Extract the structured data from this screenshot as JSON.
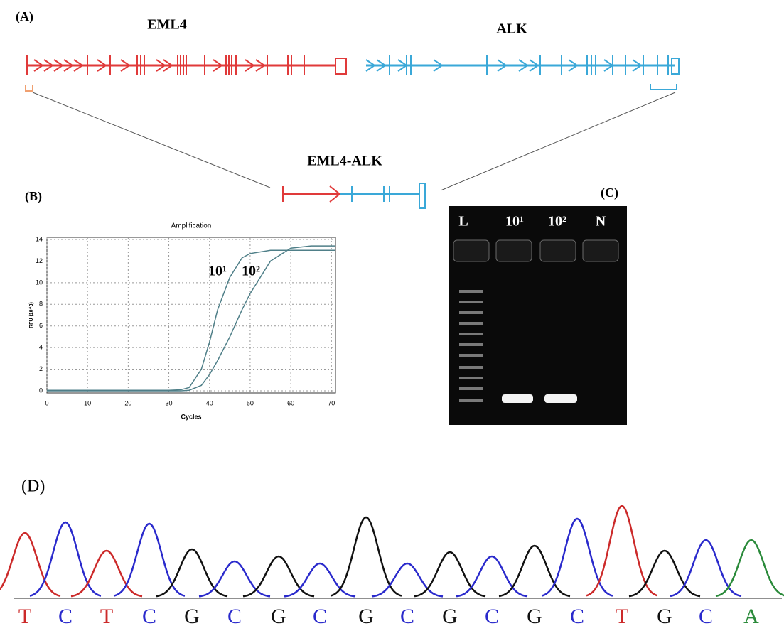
{
  "panel_labels": {
    "a": "(A)",
    "b": "(B)",
    "c": "(C)",
    "d": "(D)"
  },
  "gene_diagram": {
    "left_gene": "EML4",
    "right_gene": "ALK",
    "fusion": "EML4-ALK"
  },
  "chart_data": {
    "type": "line",
    "title": "Amplification",
    "x_label": "Cycles",
    "y_label": "RFU (10^3)",
    "x": [
      0,
      10,
      20,
      30,
      33,
      35,
      38,
      40,
      42,
      45,
      48,
      50,
      55,
      60,
      65,
      70,
      71
    ],
    "series": [
      {
        "name": "10¹",
        "color": "#4f7f88",
        "values": [
          0.05,
          0.05,
          0.05,
          0.05,
          0.1,
          0.3,
          2,
          4.5,
          7.5,
          10.5,
          12.3,
          12.7,
          13,
          13,
          13,
          13,
          13
        ]
      },
      {
        "name": "10²",
        "color": "#4f7f88",
        "values": [
          0,
          0,
          0,
          0,
          0,
          0.05,
          0.5,
          1.5,
          2.8,
          5,
          7.5,
          9,
          12,
          13.2,
          13.4,
          13.4,
          13.4
        ]
      }
    ],
    "xlim": [
      0,
      71
    ],
    "xticks": [
      0,
      10,
      20,
      30,
      40,
      50,
      60,
      70
    ],
    "ylim": [
      -0.2,
      14.2
    ],
    "yticks": [
      0,
      2,
      4,
      6,
      8,
      10,
      12,
      14
    ],
    "grid": true
  },
  "gel": {
    "lanes": [
      "L",
      "10¹",
      "10²",
      "N"
    ]
  },
  "chromatogram": {
    "bases": [
      "T",
      "C",
      "T",
      "C",
      "G",
      "C",
      "G",
      "C",
      "G",
      "C",
      "G",
      "C",
      "G",
      "C",
      "T",
      "G",
      "C",
      "A"
    ]
  }
}
